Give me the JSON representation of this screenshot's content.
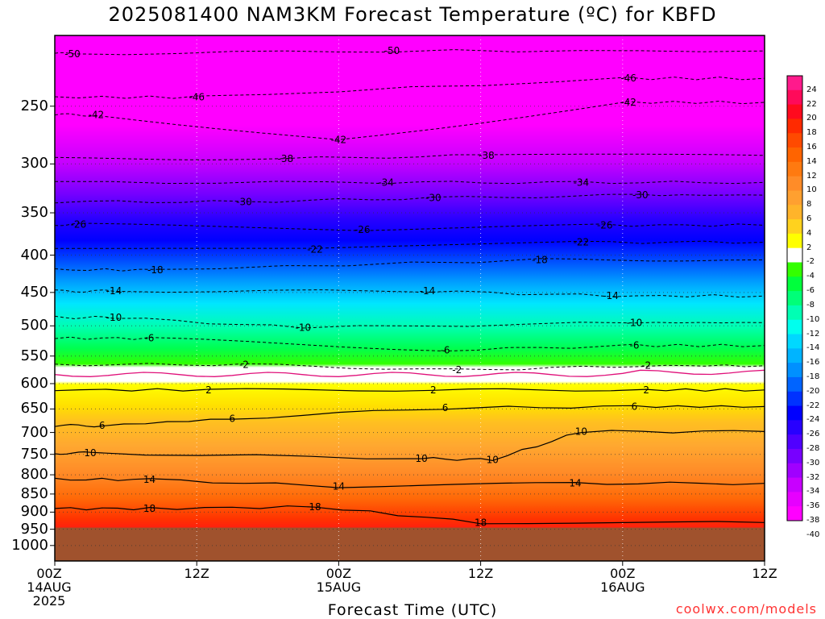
{
  "title": "2025081400 NAM3KM Forecast Temperature (ºC) for KBFD",
  "credit": "coolwx.com/models",
  "chart_data": {
    "type": "heatmap",
    "title": "2025081400 NAM3KM Forecast Temperature (ºC) for KBFD",
    "xlabel": "Forecast Time (UTC)",
    "ylabel": "",
    "x_ticks": [
      {
        "hour": 0,
        "label": [
          "00Z",
          "14AUG",
          "2025"
        ]
      },
      {
        "hour": 12,
        "label": [
          "12Z"
        ]
      },
      {
        "hour": 24,
        "label": [
          "00Z",
          "15AUG"
        ]
      },
      {
        "hour": 36,
        "label": [
          "12Z"
        ]
      },
      {
        "hour": 48,
        "label": [
          "00Z",
          "16AUG"
        ]
      },
      {
        "hour": 60,
        "label": [
          "12Z"
        ]
      }
    ],
    "xlim": [
      0,
      60
    ],
    "y_ticks": [
      250,
      300,
      350,
      400,
      450,
      500,
      550,
      600,
      650,
      700,
      750,
      800,
      850,
      900,
      950,
      1000
    ],
    "ylim": [
      200,
      1050
    ],
    "yscale": "log",
    "colorbar_labels": [
      24,
      22,
      20,
      18,
      16,
      14,
      12,
      10,
      8,
      6,
      4,
      2,
      -2,
      -4,
      -6,
      -8,
      -10,
      -12,
      -14,
      -16,
      -18,
      -20,
      -22,
      -24,
      -26,
      -28,
      -30,
      -32,
      -34,
      -36,
      -38,
      -40
    ],
    "colorbar_colors": [
      "#ff1a8c",
      "#ff0a5a",
      "#ff0a1e",
      "#ff2a00",
      "#ff4a00",
      "#ff6400",
      "#ff7a10",
      "#ff8c28",
      "#ffa030",
      "#ffb42a",
      "#ffd21e",
      "#ffff00",
      "#ffffff",
      "#33ff00",
      "#00ff3c",
      "#00ff78",
      "#00ffb4",
      "#00ffee",
      "#00d8ff",
      "#00b4ff",
      "#0090ff",
      "#0064ff",
      "#0032ff",
      "#0000ff",
      "#2800ff",
      "#5000ff",
      "#7800ff",
      "#a000ff",
      "#c800ff",
      "#e600ff",
      "#ff00ff"
    ],
    "terrain_color": "#a0522d",
    "contour_labels": [
      {
        "hour": 1.5,
        "p": 212,
        "v": "-50"
      },
      {
        "hour": 28.5,
        "p": 210,
        "v": "-50"
      },
      {
        "hour": 12,
        "p": 243,
        "v": "-46"
      },
      {
        "hour": 48.5,
        "p": 229,
        "v": "-46"
      },
      {
        "hour": 3.5,
        "p": 257,
        "v": "-42"
      },
      {
        "hour": 24,
        "p": 278,
        "v": "-42"
      },
      {
        "hour": 48.5,
        "p": 247,
        "v": "-42"
      },
      {
        "hour": 19.5,
        "p": 295,
        "v": "-38"
      },
      {
        "hour": 36.5,
        "p": 292,
        "v": "-38"
      },
      {
        "hour": 28,
        "p": 318,
        "v": "-34"
      },
      {
        "hour": 44.5,
        "p": 318,
        "v": "-34"
      },
      {
        "hour": 16,
        "p": 338,
        "v": "-30"
      },
      {
        "hour": 32,
        "p": 334,
        "v": "-30"
      },
      {
        "hour": 49.5,
        "p": 331,
        "v": "-30"
      },
      {
        "hour": 2,
        "p": 363,
        "v": "-26"
      },
      {
        "hour": 26,
        "p": 369,
        "v": "-26"
      },
      {
        "hour": 46.5,
        "p": 364,
        "v": "-26"
      },
      {
        "hour": 22,
        "p": 393,
        "v": "-22"
      },
      {
        "hour": 44.5,
        "p": 384,
        "v": "-22"
      },
      {
        "hour": 8.5,
        "p": 419,
        "v": "-18"
      },
      {
        "hour": 41,
        "p": 406,
        "v": "-18"
      },
      {
        "hour": 5,
        "p": 448,
        "v": "-14"
      },
      {
        "hour": 31.5,
        "p": 448,
        "v": "-14"
      },
      {
        "hour": 47,
        "p": 455,
        "v": "-14"
      },
      {
        "hour": 5,
        "p": 487,
        "v": "-10"
      },
      {
        "hour": 21,
        "p": 503,
        "v": "-10"
      },
      {
        "hour": 49,
        "p": 495,
        "v": "-10"
      },
      {
        "hour": 8,
        "p": 520,
        "v": "-6"
      },
      {
        "hour": 33,
        "p": 540,
        "v": "-6"
      },
      {
        "hour": 49,
        "p": 532,
        "v": "-6"
      },
      {
        "hour": 16,
        "p": 565,
        "v": "-2"
      },
      {
        "hour": 34,
        "p": 575,
        "v": "-2"
      },
      {
        "hour": 50,
        "p": 567,
        "v": "-2"
      },
      {
        "hour": 13,
        "p": 612,
        "v": "2"
      },
      {
        "hour": 32,
        "p": 612,
        "v": "2"
      },
      {
        "hour": 50,
        "p": 612,
        "v": "2"
      },
      {
        "hour": 15,
        "p": 670,
        "v": "6"
      },
      {
        "hour": 4,
        "p": 685,
        "v": "6"
      },
      {
        "hour": 33,
        "p": 648,
        "v": "6"
      },
      {
        "hour": 49,
        "p": 645,
        "v": "6"
      },
      {
        "hour": 3,
        "p": 747,
        "v": "10"
      },
      {
        "hour": 31,
        "p": 760,
        "v": "10"
      },
      {
        "hour": 37,
        "p": 763,
        "v": "10"
      },
      {
        "hour": 44.5,
        "p": 698,
        "v": "10"
      },
      {
        "hour": 8,
        "p": 812,
        "v": "14"
      },
      {
        "hour": 24,
        "p": 830,
        "v": "14"
      },
      {
        "hour": 44,
        "p": 822,
        "v": "14"
      },
      {
        "hour": 8,
        "p": 890,
        "v": "18"
      },
      {
        "hour": 22,
        "p": 885,
        "v": "18"
      },
      {
        "hour": 36,
        "p": 930,
        "v": "18"
      }
    ]
  }
}
